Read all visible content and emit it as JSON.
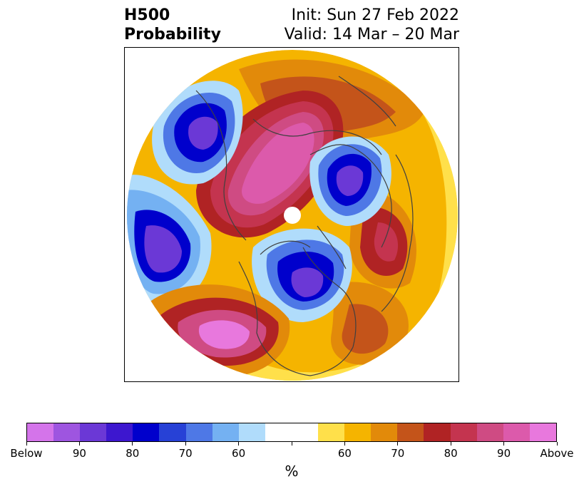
{
  "title": {
    "left_line1": "H500",
    "left_line2": "Probability",
    "right_line1": "Init: Sun 27 Feb 2022",
    "right_line2": "Valid: 14 Mar – 20 Mar"
  },
  "colorbar": {
    "unit": "%",
    "colors": [
      "#d474ea",
      "#9e55e0",
      "#6b38d6",
      "#3d17cf",
      "#0000cc",
      "#2741d6",
      "#4e78e6",
      "#74b1f2",
      "#b0dcfb",
      "#ffffff",
      "#ffffff",
      "#ffe04a",
      "#f5b400",
      "#e28a0a",
      "#c4541a",
      "#b02324",
      "#c4344f",
      "#cf4b83",
      "#dc5aab",
      "#e878dd"
    ],
    "tick_labels": [
      "Below",
      "90",
      "80",
      "70",
      "60",
      "",
      "60",
      "70",
      "80",
      "90",
      "Above"
    ]
  },
  "map": {
    "projection_colors": {
      "below_strong": "#6b38d6",
      "below_core": "#0000cc",
      "below_mid": "#4e78e6",
      "below_weak": "#b0dcfb",
      "above_weak": "#ffe04a",
      "above_mid": "#e28a0a",
      "above_strong": "#b02324",
      "above_core": "#dc5aab",
      "coast": "#404040"
    }
  }
}
